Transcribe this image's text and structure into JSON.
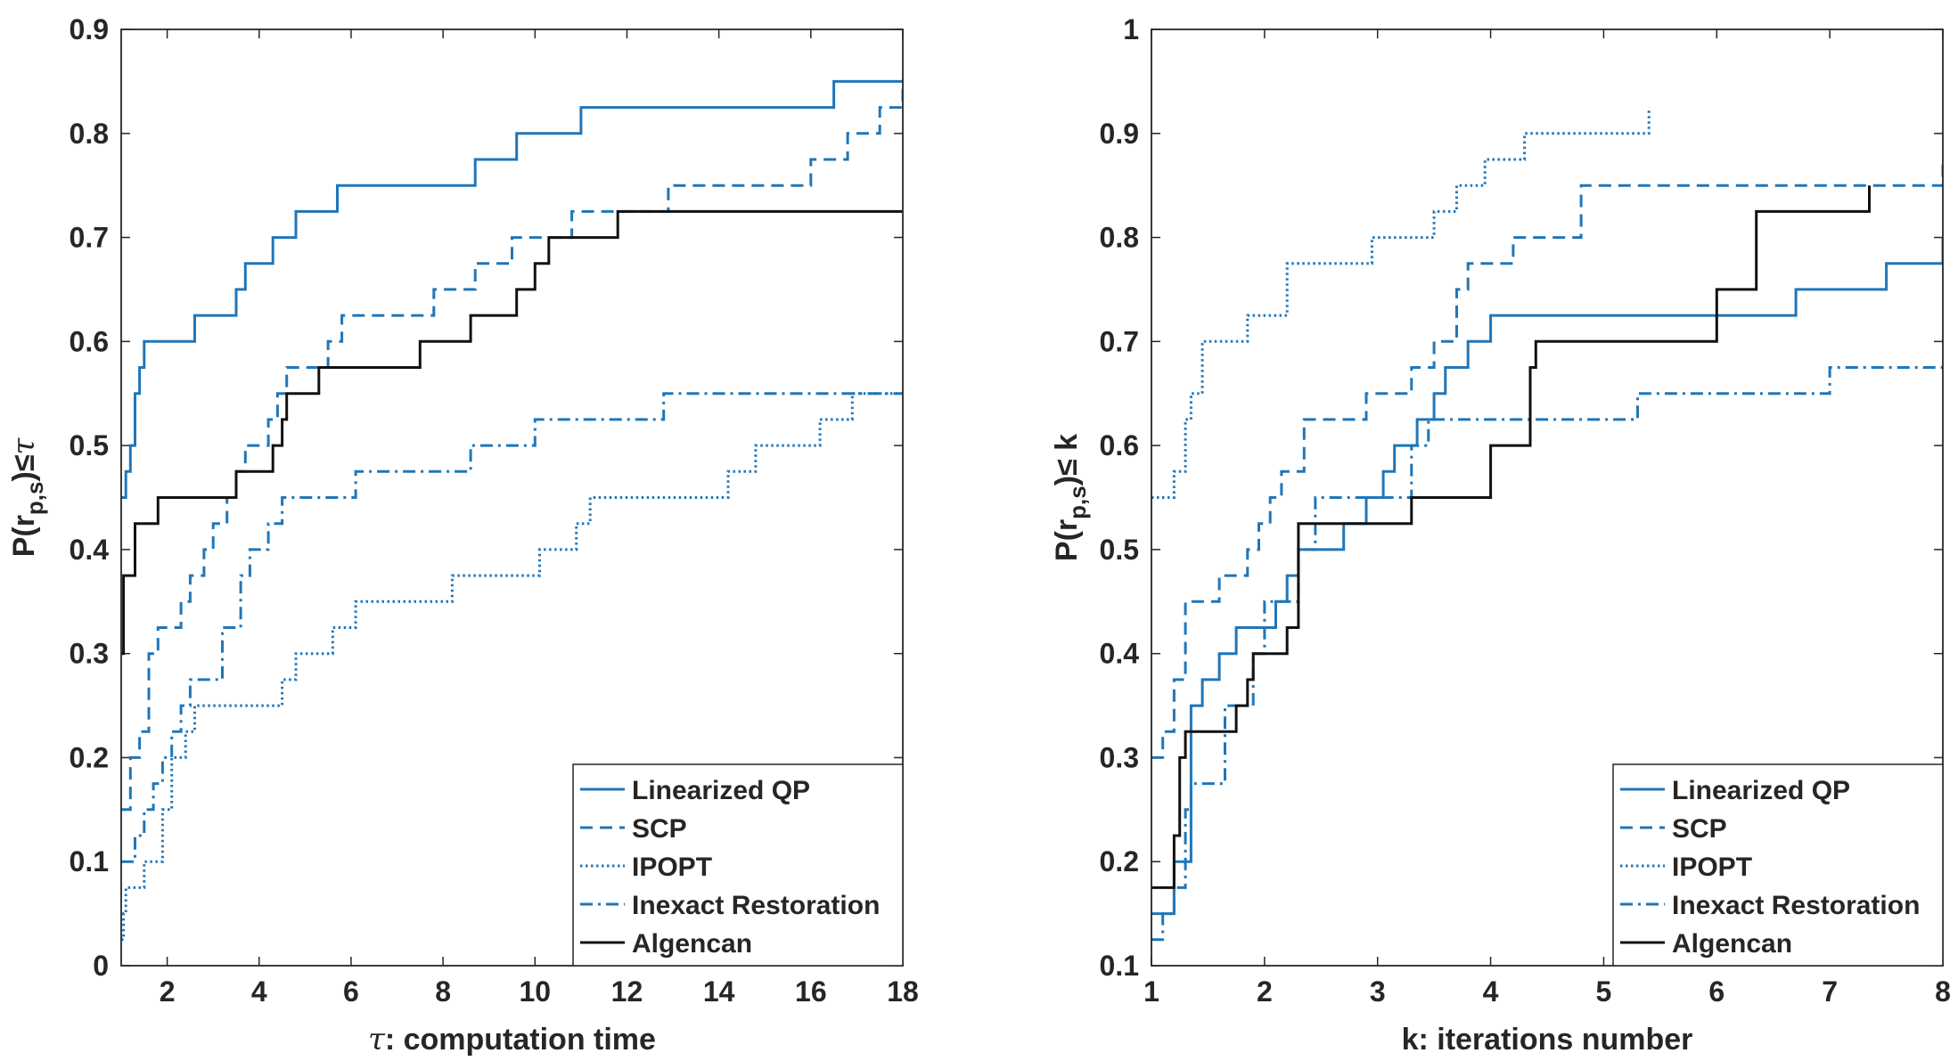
{
  "colors": {
    "blue": "#2076b8",
    "black": "#111111",
    "axis": "#262626"
  },
  "chart_data": [
    {
      "type": "line",
      "step": true,
      "xlabel_symbol": "τ",
      "xlabel": ": computation time",
      "ylabel_base": "P(r",
      "ylabel_sub": "p,s",
      "ylabel_tail": ")≤",
      "ylabel_symbol": "τ",
      "xlim": [
        1,
        18
      ],
      "ylim": [
        0,
        0.9
      ],
      "xticks": [
        2,
        4,
        6,
        8,
        10,
        12,
        14,
        16,
        18
      ],
      "xtick_labels": [
        "2",
        "4",
        "6",
        "8",
        "10",
        "12",
        "14",
        "16",
        "18"
      ],
      "yticks": [
        0,
        0.1,
        0.2,
        0.3,
        0.4,
        0.5,
        0.6,
        0.7,
        0.8,
        0.9
      ],
      "ytick_labels": [
        "0",
        "0.1",
        "0.2",
        "0.3",
        "0.4",
        "0.5",
        "0.6",
        "0.7",
        "0.8",
        "0.9"
      ],
      "legend_position": "bottom-right",
      "series": [
        {
          "name": "Linearized QP",
          "color": "blue",
          "dash": "solid",
          "x": [
            1,
            1.1,
            1.2,
            1.3,
            1.4,
            1.5,
            2.6,
            3.5,
            3.7,
            4.3,
            4.8,
            5.7,
            8.7,
            9.6,
            11,
            16.5,
            18
          ],
          "y": [
            0.45,
            0.475,
            0.5,
            0.55,
            0.575,
            0.6,
            0.625,
            0.65,
            0.675,
            0.7,
            0.725,
            0.75,
            0.775,
            0.8,
            0.825,
            0.85,
            0.85
          ]
        },
        {
          "name": "SCP",
          "color": "blue",
          "dash": "dashed",
          "x": [
            1,
            1.2,
            1.4,
            1.6,
            1.8,
            2.3,
            2.5,
            2.8,
            3.0,
            3.3,
            3.5,
            3.7,
            4.2,
            4.4,
            4.6,
            5.5,
            5.8,
            6.2,
            7.8,
            8.7,
            9.5,
            10.0,
            10.8,
            12.9,
            16.0,
            16.8,
            17.5,
            18
          ],
          "y": [
            0.15,
            0.2,
            0.225,
            0.3,
            0.325,
            0.35,
            0.375,
            0.4,
            0.425,
            0.45,
            0.475,
            0.5,
            0.525,
            0.55,
            0.575,
            0.6,
            0.625,
            0.625,
            0.65,
            0.675,
            0.7,
            0.7,
            0.725,
            0.75,
            0.775,
            0.8,
            0.825,
            0.85
          ]
        },
        {
          "name": "IPOPT",
          "color": "blue",
          "dash": "dotted",
          "x": [
            1,
            1.05,
            1.1,
            1.2,
            1.5,
            1.9,
            2.1,
            2.4,
            2.6,
            4.5,
            4.8,
            5.6,
            6.1,
            7.5,
            8.2,
            10.1,
            10.9,
            11.2,
            13.0,
            14.2,
            14.8,
            15.5,
            16.2,
            16.9,
            18
          ],
          "y": [
            0.025,
            0.05,
            0.075,
            0.075,
            0.1,
            0.15,
            0.2,
            0.225,
            0.25,
            0.275,
            0.3,
            0.325,
            0.35,
            0.35,
            0.375,
            0.4,
            0.425,
            0.45,
            0.45,
            0.475,
            0.5,
            0.5,
            0.525,
            0.55,
            0.55
          ]
        },
        {
          "name": "Inexact Restoration",
          "color": "blue",
          "dash": "dashdot",
          "x": [
            1,
            1.3,
            1.5,
            1.7,
            1.9,
            2.1,
            2.3,
            2.5,
            3.2,
            3.6,
            3.8,
            4.2,
            4.5,
            5.5,
            6.1,
            7.6,
            8.6,
            10.0,
            12.8,
            18
          ],
          "y": [
            0.1,
            0.125,
            0.15,
            0.175,
            0.2,
            0.225,
            0.25,
            0.275,
            0.325,
            0.375,
            0.4,
            0.425,
            0.45,
            0.45,
            0.475,
            0.475,
            0.5,
            0.525,
            0.55,
            0.55
          ]
        },
        {
          "name": "Algencan",
          "color": "black",
          "dash": "solid",
          "x": [
            1,
            1.05,
            1.3,
            1.8,
            3.5,
            4.3,
            4.5,
            4.6,
            5.3,
            7.5,
            8.6,
            9.6,
            10.0,
            10.3,
            11.8,
            18
          ],
          "y": [
            0.3,
            0.375,
            0.425,
            0.45,
            0.475,
            0.5,
            0.525,
            0.55,
            0.575,
            0.6,
            0.625,
            0.65,
            0.675,
            0.7,
            0.725,
            0.725
          ]
        }
      ]
    },
    {
      "type": "line",
      "step": true,
      "xlabel": "k: iterations number",
      "ylabel_base": "P(r",
      "ylabel_sub": "p,s",
      "ylabel_tail": ")≤ k",
      "xlim": [
        1,
        8
      ],
      "ylim": [
        0.1,
        1
      ],
      "xticks": [
        1,
        2,
        3,
        4,
        5,
        6,
        7,
        8
      ],
      "xtick_labels": [
        "1",
        "2",
        "3",
        "4",
        "5",
        "6",
        "7",
        "8"
      ],
      "yticks": [
        0.1,
        0.2,
        0.3,
        0.4,
        0.5,
        0.6,
        0.7,
        0.8,
        0.9,
        1
      ],
      "ytick_labels": [
        "0.1",
        "0.2",
        "0.3",
        "0.4",
        "0.5",
        "0.6",
        "0.7",
        "0.8",
        "0.9",
        "1"
      ],
      "legend_position": "bottom-right",
      "series": [
        {
          "name": "Linearized QP",
          "color": "blue",
          "dash": "solid",
          "x": [
            1,
            1.2,
            1.35,
            1.45,
            1.6,
            1.75,
            2.1,
            2.2,
            2.3,
            2.7,
            2.9,
            3.05,
            3.15,
            3.35,
            3.5,
            3.6,
            3.8,
            4.0,
            6.7,
            7.5,
            8
          ],
          "y": [
            0.15,
            0.2,
            0.35,
            0.375,
            0.4,
            0.425,
            0.45,
            0.475,
            0.5,
            0.525,
            0.55,
            0.575,
            0.6,
            0.625,
            0.65,
            0.675,
            0.7,
            0.725,
            0.75,
            0.775,
            0.8
          ]
        },
        {
          "name": "SCP",
          "color": "blue",
          "dash": "dashed",
          "x": [
            1,
            1.1,
            1.2,
            1.3,
            1.6,
            1.85,
            1.95,
            2.05,
            2.15,
            2.35,
            2.9,
            3.3,
            3.5,
            3.7,
            3.8,
            4.2,
            4.8,
            8
          ],
          "y": [
            0.3,
            0.325,
            0.375,
            0.45,
            0.475,
            0.5,
            0.525,
            0.55,
            0.575,
            0.625,
            0.65,
            0.675,
            0.7,
            0.75,
            0.775,
            0.8,
            0.85,
            0.87
          ]
        },
        {
          "name": "IPOPT",
          "color": "blue",
          "dash": "dotted",
          "x": [
            1,
            1.2,
            1.3,
            1.35,
            1.45,
            1.6,
            1.85,
            2.2,
            2.65,
            2.95,
            3.5,
            3.7,
            3.95,
            4.3,
            4.6,
            5.4
          ],
          "y": [
            0.55,
            0.575,
            0.625,
            0.65,
            0.7,
            0.7,
            0.725,
            0.775,
            0.775,
            0.8,
            0.825,
            0.85,
            0.875,
            0.9,
            0.9,
            0.925
          ]
        },
        {
          "name": "Inexact Restoration",
          "color": "blue",
          "dash": "dashdot",
          "x": [
            1,
            1.1,
            1.2,
            1.3,
            1.35,
            1.65,
            1.9,
            2.0,
            2.3,
            2.45,
            3.3,
            3.45,
            4.0,
            5.3,
            7.0,
            8
          ],
          "y": [
            0.125,
            0.15,
            0.175,
            0.25,
            0.275,
            0.35,
            0.4,
            0.45,
            0.5,
            0.55,
            0.6,
            0.625,
            0.625,
            0.65,
            0.675,
            0.675
          ]
        },
        {
          "name": "Algencan",
          "color": "black",
          "dash": "solid",
          "x": [
            1,
            1.2,
            1.25,
            1.3,
            1.75,
            1.85,
            1.9,
            2.2,
            2.3,
            3.3,
            4.0,
            4.35,
            4.4,
            6.0,
            6.35,
            7.35
          ],
          "y": [
            0.175,
            0.225,
            0.3,
            0.325,
            0.35,
            0.375,
            0.4,
            0.425,
            0.525,
            0.55,
            0.6,
            0.675,
            0.7,
            0.75,
            0.825,
            0.85
          ]
        }
      ]
    }
  ]
}
